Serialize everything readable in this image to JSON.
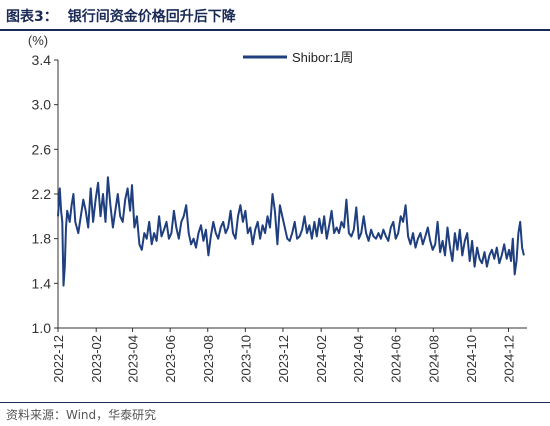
{
  "figure": {
    "number": "图表3：",
    "title": "银行间资金价格回升后下降",
    "source": "资料来源：Wind，华泰研究"
  },
  "colors": {
    "line": "#1f3f7f",
    "title": "#1a2a55",
    "axis": "#333333"
  },
  "chart_data": {
    "type": "line",
    "title": "",
    "xlabel": "",
    "ylabel": "(%)",
    "ylim": [
      1.0,
      3.4
    ],
    "yticks": [
      "1.0",
      "1.4",
      "1.8",
      "2.2",
      "2.6",
      "3.0",
      "3.4"
    ],
    "xlim": [
      "2022-12-01",
      "2024-12-31"
    ],
    "xticks": [
      "2022-12",
      "2023-02",
      "2023-04",
      "2023-06",
      "2023-08",
      "2023-10",
      "2023-12",
      "2024-02",
      "2024-04",
      "2024-06",
      "2024-08",
      "2024-10",
      "2024-12"
    ],
    "legend_position": "top-center",
    "grid": false,
    "series": [
      {
        "name": "Shibor:1周",
        "x": [
          "2022-12-01",
          "2022-12-04",
          "2022-12-06",
          "2022-12-08",
          "2022-12-10",
          "2022-12-12",
          "2022-12-14",
          "2022-12-16",
          "2022-12-18",
          "2022-12-20",
          "2022-12-23",
          "2022-12-26",
          "2022-12-29",
          "2023-01-03",
          "2023-01-07",
          "2023-01-11",
          "2023-01-15",
          "2023-01-19",
          "2023-01-23",
          "2023-01-27",
          "2023-01-31",
          "2023-02-04",
          "2023-02-08",
          "2023-02-12",
          "2023-02-16",
          "2023-02-20",
          "2023-02-24",
          "2023-02-28",
          "2023-03-04",
          "2023-03-08",
          "2023-03-12",
          "2023-03-16",
          "2023-03-20",
          "2023-03-24",
          "2023-03-28",
          "2023-03-31",
          "2023-04-04",
          "2023-04-08",
          "2023-04-12",
          "2023-04-16",
          "2023-04-20",
          "2023-04-24",
          "2023-04-28",
          "2023-05-02",
          "2023-05-06",
          "2023-05-10",
          "2023-05-14",
          "2023-05-18",
          "2023-05-22",
          "2023-05-26",
          "2023-05-30",
          "2023-06-03",
          "2023-06-07",
          "2023-06-11",
          "2023-06-15",
          "2023-06-19",
          "2023-06-23",
          "2023-06-27",
          "2023-07-01",
          "2023-07-05",
          "2023-07-09",
          "2023-07-13",
          "2023-07-17",
          "2023-07-21",
          "2023-07-25",
          "2023-07-29",
          "2023-08-02",
          "2023-08-06",
          "2023-08-10",
          "2023-08-14",
          "2023-08-18",
          "2023-08-22",
          "2023-08-26",
          "2023-08-30",
          "2023-09-03",
          "2023-09-07",
          "2023-09-11",
          "2023-09-15",
          "2023-09-19",
          "2023-09-23",
          "2023-09-27",
          "2023-10-01",
          "2023-10-05",
          "2023-10-09",
          "2023-10-13",
          "2023-10-17",
          "2023-10-21",
          "2023-10-25",
          "2023-10-29",
          "2023-11-02",
          "2023-11-06",
          "2023-11-10",
          "2023-11-14",
          "2023-11-18",
          "2023-11-22",
          "2023-11-26",
          "2023-11-30",
          "2023-12-04",
          "2023-12-08",
          "2023-12-12",
          "2023-12-16",
          "2023-12-20",
          "2023-12-24",
          "2023-12-28",
          "2024-01-01",
          "2024-01-05",
          "2024-01-09",
          "2024-01-13",
          "2024-01-17",
          "2024-01-21",
          "2024-01-25",
          "2024-01-29",
          "2024-02-02",
          "2024-02-06",
          "2024-02-10",
          "2024-02-14",
          "2024-02-18",
          "2024-02-22",
          "2024-02-26",
          "2024-03-01",
          "2024-03-05",
          "2024-03-09",
          "2024-03-13",
          "2024-03-17",
          "2024-03-21",
          "2024-03-25",
          "2024-03-29",
          "2024-04-02",
          "2024-04-06",
          "2024-04-10",
          "2024-04-14",
          "2024-04-18",
          "2024-04-22",
          "2024-04-26",
          "2024-04-30",
          "2024-05-04",
          "2024-05-08",
          "2024-05-12",
          "2024-05-16",
          "2024-05-20",
          "2024-05-24",
          "2024-05-28",
          "2024-06-01",
          "2024-06-05",
          "2024-06-09",
          "2024-06-13",
          "2024-06-17",
          "2024-06-21",
          "2024-06-25",
          "2024-06-29",
          "2024-07-03",
          "2024-07-07",
          "2024-07-11",
          "2024-07-15",
          "2024-07-19",
          "2024-07-23",
          "2024-07-27",
          "2024-07-31",
          "2024-08-04",
          "2024-08-08",
          "2024-08-12",
          "2024-08-16",
          "2024-08-20",
          "2024-08-24",
          "2024-08-28",
          "2024-09-01",
          "2024-09-05",
          "2024-09-09",
          "2024-09-13",
          "2024-09-17",
          "2024-09-21",
          "2024-09-25",
          "2024-09-29",
          "2024-10-03",
          "2024-10-07",
          "2024-10-11",
          "2024-10-15",
          "2024-10-19",
          "2024-10-23",
          "2024-10-27",
          "2024-10-31",
          "2024-11-04",
          "2024-11-08",
          "2024-11-12",
          "2024-11-16",
          "2024-11-20",
          "2024-11-24",
          "2024-11-28",
          "2024-12-02",
          "2024-12-05",
          "2024-12-08",
          "2024-12-11",
          "2024-12-14",
          "2024-12-17",
          "2024-12-20",
          "2024-12-23",
          "2024-12-26"
        ],
        "values": [
          2.0,
          2.25,
          2.05,
          1.95,
          1.38,
          1.55,
          1.9,
          2.05,
          2.0,
          1.95,
          2.1,
          2.2,
          1.95,
          1.85,
          2.0,
          2.15,
          2.05,
          1.9,
          2.25,
          1.95,
          2.15,
          2.3,
          2.0,
          2.2,
          1.95,
          2.35,
          2.1,
          1.9,
          2.05,
          2.2,
          2.0,
          1.95,
          2.15,
          2.25,
          2.05,
          2.28,
          1.9,
          2.0,
          1.75,
          1.7,
          1.85,
          1.8,
          1.95,
          1.75,
          1.85,
          1.78,
          2.0,
          1.82,
          1.88,
          1.95,
          1.8,
          1.85,
          2.05,
          1.9,
          1.8,
          1.95,
          2.0,
          2.1,
          1.85,
          1.75,
          1.8,
          1.72,
          1.85,
          1.92,
          1.78,
          1.88,
          1.65,
          1.82,
          1.95,
          1.85,
          1.8,
          1.9,
          1.95,
          1.85,
          1.9,
          2.05,
          1.85,
          1.8,
          2.0,
          2.1,
          1.95,
          2.05,
          1.85,
          1.9,
          1.75,
          1.88,
          1.95,
          1.8,
          1.92,
          1.85,
          2.0,
          1.9,
          2.2,
          2.05,
          1.75,
          2.1,
          2.0,
          1.9,
          1.8,
          1.78,
          1.85,
          1.95,
          1.8,
          1.82,
          1.88,
          2.0,
          1.85,
          1.92,
          1.8,
          1.95,
          1.82,
          1.98,
          1.85,
          2.0,
          1.8,
          1.92,
          2.05,
          1.85,
          1.9,
          1.85,
          1.95,
          1.9,
          2.15,
          1.85,
          1.82,
          1.88,
          2.08,
          1.8,
          1.85,
          2.0,
          1.85,
          1.78,
          1.88,
          1.82,
          1.8,
          1.85,
          1.8,
          1.88,
          1.82,
          1.78,
          1.9,
          1.95,
          1.8,
          1.85,
          2.0,
          1.95,
          2.1,
          1.82,
          1.75,
          1.85,
          1.72,
          1.8,
          1.85,
          1.75,
          1.82,
          1.9,
          1.78,
          1.7,
          1.75,
          1.95,
          1.68,
          1.78,
          1.65,
          1.9,
          1.72,
          1.6,
          1.85,
          1.7,
          1.88,
          1.65,
          1.78,
          1.85,
          1.6,
          1.78,
          1.55,
          1.72,
          1.62,
          1.58,
          1.68,
          1.55,
          1.65,
          1.7,
          1.62,
          1.72,
          1.58,
          1.65,
          1.75,
          1.62,
          1.7,
          1.6,
          1.8,
          1.48,
          1.6,
          1.85,
          1.95,
          1.72,
          1.65
        ]
      }
    ]
  }
}
